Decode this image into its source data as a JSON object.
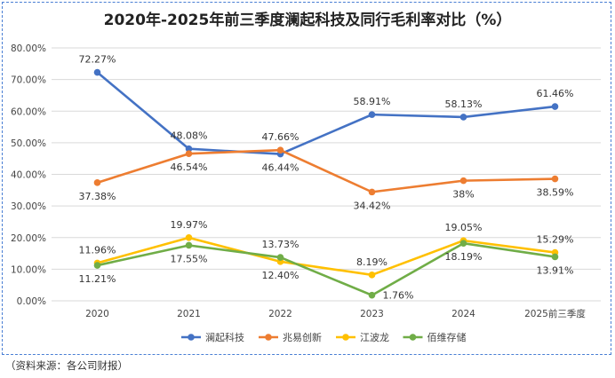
{
  "chart_data": {
    "type": "line",
    "title": "2020年-2025年前三季度澜起科技及同行毛利率对比（%）",
    "categories": [
      "2020",
      "2021",
      "2022",
      "2023",
      "2024",
      "2025前三季度"
    ],
    "ylim": [
      0,
      80
    ],
    "yticks": [
      "0.00%",
      "10.00%",
      "20.00%",
      "30.00%",
      "40.00%",
      "50.00%",
      "60.00%",
      "70.00%",
      "80.00%"
    ],
    "grid": true,
    "legend_position": "bottom",
    "series": [
      {
        "name": "澜起科技",
        "color": "#4472c4",
        "values": [
          72.27,
          48.08,
          46.44,
          58.91,
          58.13,
          61.46
        ],
        "labels": [
          "72.27%",
          "48.08%",
          "46.44%",
          "58.91%",
          "58.13%",
          "61.46%"
        ]
      },
      {
        "name": "兆易创新",
        "color": "#ed7d31",
        "values": [
          37.38,
          46.54,
          47.66,
          34.42,
          38,
          38.59
        ],
        "labels": [
          "37.38%",
          "46.54%",
          "47.66%",
          "34.42%",
          "38%",
          "38.59%"
        ]
      },
      {
        "name": "江波龙",
        "color": "#ffc000",
        "values": [
          11.96,
          19.97,
          12.4,
          8.19,
          19.05,
          15.29
        ],
        "labels": [
          "11.96%",
          "19.97%",
          "12.40%",
          "8.19%",
          "19.05%",
          "15.29%"
        ]
      },
      {
        "name": "佰维存储",
        "color": "#70ad47",
        "values": [
          11.21,
          17.55,
          13.73,
          1.76,
          18.19,
          13.91
        ],
        "labels": [
          "11.21%",
          "17.55%",
          "13.73%",
          "1.76%",
          "18.19%",
          "13.91%"
        ]
      }
    ]
  },
  "source_note": "（资料来源：各公司财报）"
}
